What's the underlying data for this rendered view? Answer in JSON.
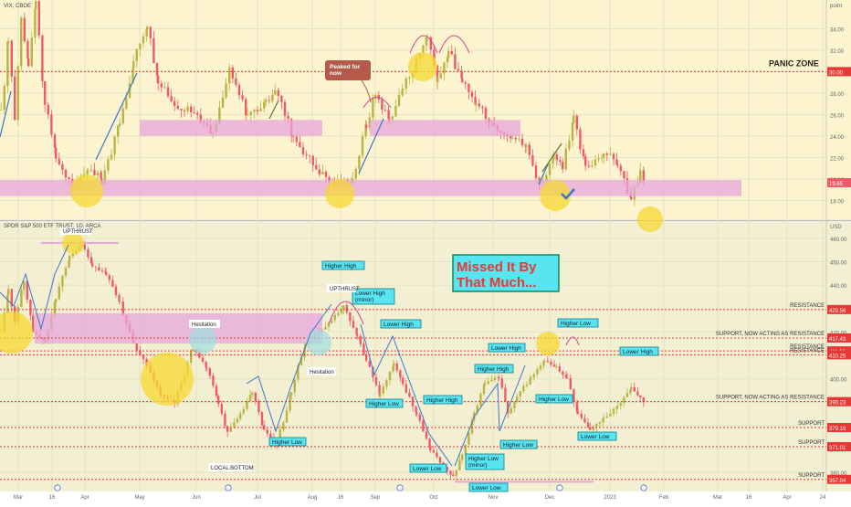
{
  "colors": {
    "top_bg": "#fbf4cf",
    "bottom_bg": "#f2efd2",
    "grid": "#e6e2c6",
    "up": "#b9b441",
    "down": "#ef5a6a",
    "blue_up": "#3c77c8",
    "red_dash": "#e53935",
    "pink_zone": "#e7a6dc",
    "yellow_circle": "#f7d832",
    "teal_circle": "#9fe0e0",
    "label_bg": "#58e4f0",
    "label_border": "#0d7f8a",
    "title_red": "#e53935",
    "title_border": "#0b8c5a",
    "axis_text": "#666666",
    "peaked_box": "#b35a4a",
    "arc_pink": "#d9408f"
  },
  "vix": {
    "symbol_label": "VIX, CBOE",
    "unit_label": "point",
    "ticks": [
      34,
      32,
      30,
      28,
      26,
      24,
      22,
      20,
      18
    ],
    "tick_labels": [
      "34.00",
      "32.00",
      "30.00",
      "28.00",
      "26.00",
      "24.00",
      "22.00",
      "20.00",
      "18.00"
    ],
    "last_price_label": "19.65",
    "panic_line_label": "30.00",
    "panic_zone_label": "PANIC ZONE",
    "peaked_note": "Peaked for\nnow"
  },
  "spy": {
    "symbol_label": "SPDR S&P 500 ETF TRUST, 1D, ARCA",
    "unit_label": "USD",
    "ticks": [
      460,
      450,
      440,
      430,
      420,
      410,
      400,
      390,
      380,
      370,
      360
    ],
    "tick_labels": [
      "460.00",
      "450.00",
      "440.00",
      "430.00",
      "420.00",
      "410.00",
      "400.00",
      "390.00",
      "380.00",
      "370.00",
      "360.00"
    ],
    "levels": [
      {
        "price": 429.56,
        "label": "429.56",
        "text": "RESISTANCE"
      },
      {
        "price": 417.43,
        "label": "417.43",
        "text": "SUPPORT, NOW ACTING AS RESISTANCE"
      },
      {
        "price": 411.91,
        "label": "411.91",
        "text": "RESISTANCE"
      },
      {
        "price": 410.25,
        "label": "410.25",
        "text": "RESISTANCE"
      },
      {
        "price": 390.23,
        "label": "390.23",
        "text": "SUPPORT, NOW ACTING AS RESISTANCE"
      },
      {
        "price": 379.19,
        "label": "379.19",
        "text": "SUPPORT"
      },
      {
        "price": 371.01,
        "label": "371.01",
        "text": "SUPPORT"
      },
      {
        "price": 357.04,
        "label": "357.04",
        "text": "SUPPORT"
      }
    ],
    "title_line1": "Missed It By",
    "title_line2": "That Much...",
    "labels": [
      "Higher High",
      "Lower High (minor)",
      "Lower High",
      "Higher Low",
      "Higher High",
      "Lower High",
      "Higher High",
      "Higher Low",
      "Lower High",
      "Higher Low",
      "Higher Low",
      "Lower Low",
      "Lower Low",
      "Higher Low (minor)",
      "Higher Low",
      "Lower Low"
    ],
    "white_notes": [
      "UPTHRUST",
      "UPTHRUST",
      "Hesitation",
      "Hesitation",
      "LOCAL BOTTOM"
    ]
  },
  "x_axis": {
    "labels": [
      "Mar",
      "16",
      "Apr",
      "May",
      "Jun",
      "Jul",
      "Aug",
      "16",
      "Sep",
      "Oct",
      "Nov",
      "Dec",
      "2023",
      "Feb",
      "Mar",
      "16",
      "Apr",
      "24"
    ]
  },
  "chart_data": [
    {
      "type": "candlestick",
      "title": "VIX, CBOE",
      "ylabel": "point",
      "ylim": [
        16.5,
        36.5
      ],
      "x_range": [
        "Mar",
        "Feb"
      ],
      "last_value": 19.65,
      "levels": [
        {
          "value": 30.0,
          "label": "PANIC ZONE"
        }
      ],
      "zones": [
        [
          24.0,
          25.5
        ],
        [
          18.4,
          19.9
        ]
      ],
      "approx_swings": [
        {
          "x": "Mar",
          "value": 36.5
        },
        {
          "x": "Apr",
          "value": 19.0
        },
        {
          "x": "May",
          "value": 34.5
        },
        {
          "x": "Jun",
          "value": 24.5
        },
        {
          "x": "Jul",
          "value": 28.5
        },
        {
          "x": "Aug",
          "value": 19.5
        },
        {
          "x": "Sep",
          "value": 28.0
        },
        {
          "x": "Oct",
          "value": 33.5
        },
        {
          "x": "Nov",
          "value": 24.0
        },
        {
          "x": "Dec",
          "value": 19.0
        },
        {
          "x": "Dec",
          "value": 26.0
        },
        {
          "x": "2023",
          "value": 18.0
        },
        {
          "x": "2023",
          "value": 19.65
        }
      ]
    },
    {
      "type": "candlestick",
      "title": "SPDR S&P 500 ETF TRUST, 1D, ARCA",
      "ylabel": "USD",
      "ylim": [
        355,
        465
      ],
      "x_range": [
        "Mar",
        "Feb"
      ],
      "levels": [
        429.56,
        417.43,
        411.91,
        410.25,
        390.23,
        379.19,
        371.01,
        357.04
      ],
      "zones": [
        [
          415,
          428
        ]
      ],
      "approx_swings": [
        {
          "x": "Mar",
          "value": 420
        },
        {
          "x": "Mar",
          "value": 442
        },
        {
          "x": "Mar",
          "value": 416
        },
        {
          "x": "Apr",
          "value": 458
        },
        {
          "x": "May",
          "value": 390
        },
        {
          "x": "May",
          "value": 413
        },
        {
          "x": "Jun",
          "value": 377
        },
        {
          "x": "Jun",
          "value": 394
        },
        {
          "x": "Jun",
          "value": 366
        },
        {
          "x": "Jul",
          "value": 393
        },
        {
          "x": "Jul",
          "value": 376
        },
        {
          "x": "Aug",
          "value": 431
        },
        {
          "x": "Sep",
          "value": 391
        },
        {
          "x": "Sep",
          "value": 411
        },
        {
          "x": "Oct",
          "value": 358
        },
        {
          "x": "Oct",
          "value": 361
        },
        {
          "x": "Nov",
          "value": 401
        },
        {
          "x": "Nov",
          "value": 383
        },
        {
          "x": "Dec",
          "value": 409
        },
        {
          "x": "Dec",
          "value": 378
        },
        {
          "x": "2023",
          "value": 396
        },
        {
          "x": "2023",
          "value": 388
        }
      ]
    }
  ]
}
